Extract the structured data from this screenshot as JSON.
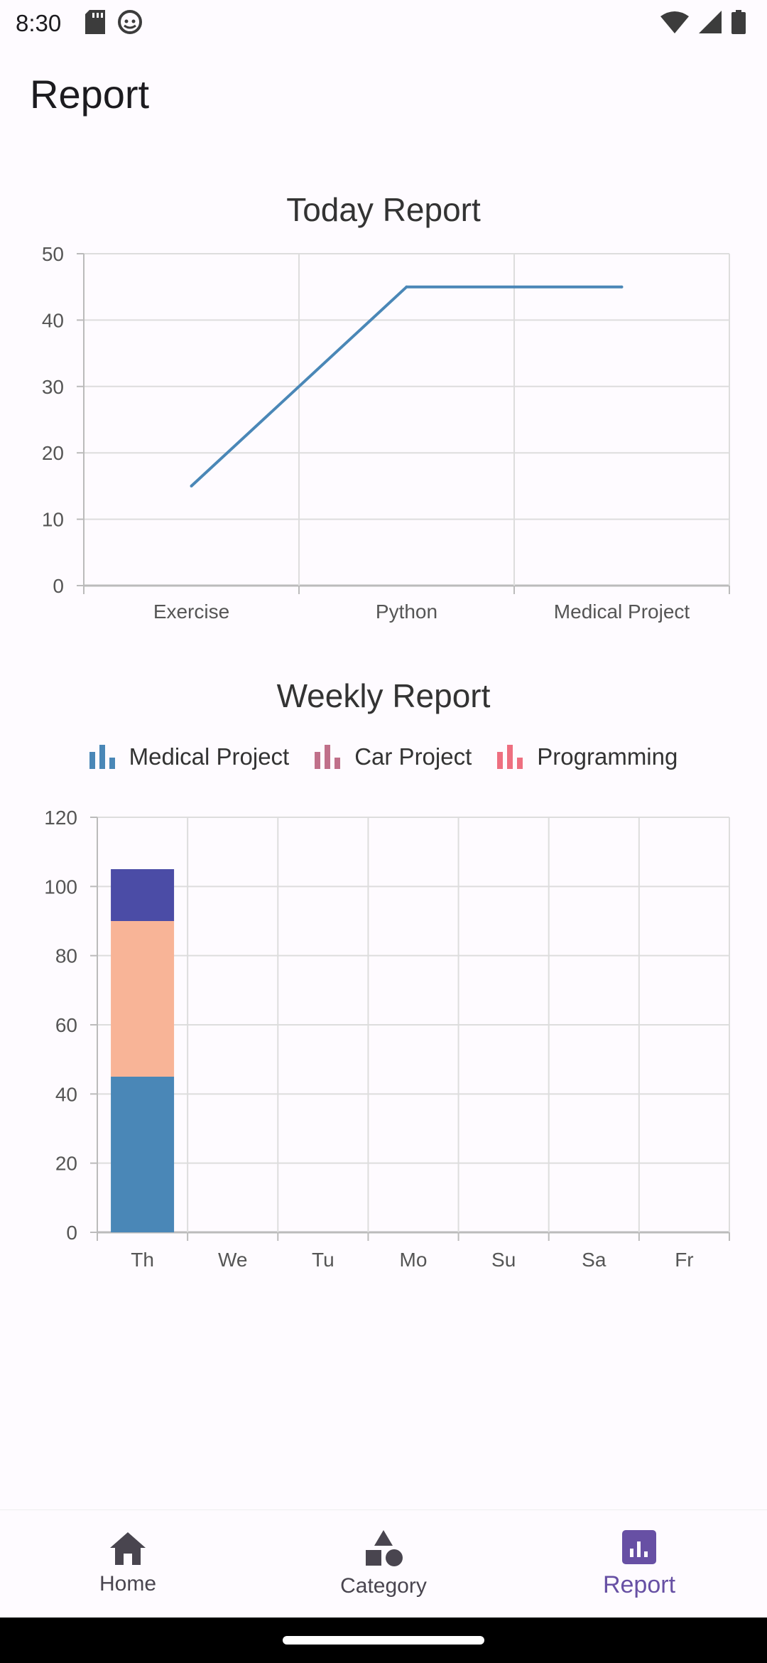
{
  "status": {
    "time": "8:30"
  },
  "app": {
    "title": "Report"
  },
  "colors": {
    "line": "#4a87b7",
    "medical": "#4a87b7",
    "car": "#f8b497",
    "programming": "#4b4ca6",
    "grid": "#dddddd",
    "axis": "#bbbbbb",
    "active": "#6750a4"
  },
  "chart_data": [
    {
      "type": "line",
      "title": "Today Report",
      "categories": [
        "Exercise",
        "Python",
        "Medical Project"
      ],
      "values": [
        15,
        45,
        45
      ],
      "ylim": [
        0,
        50
      ],
      "yticks": [
        0,
        10,
        20,
        30,
        40,
        50
      ],
      "grid": true,
      "xlabel": "",
      "ylabel": ""
    },
    {
      "type": "bar",
      "stacked": true,
      "title": "Weekly Report",
      "categories": [
        "Th",
        "We",
        "Tu",
        "Mo",
        "Su",
        "Sa",
        "Fr"
      ],
      "series": [
        {
          "name": "Medical Project",
          "values": [
            45,
            0,
            0,
            0,
            0,
            0,
            0
          ]
        },
        {
          "name": "Car Project",
          "values": [
            45,
            0,
            0,
            0,
            0,
            0,
            0
          ]
        },
        {
          "name": "Programming",
          "values": [
            15,
            0,
            0,
            0,
            0,
            0,
            0
          ]
        }
      ],
      "legend_icon_colors": [
        "#4a87b7",
        "#c0708a",
        "#ee6f80"
      ],
      "ylim": [
        0,
        120
      ],
      "yticks": [
        0,
        20,
        40,
        60,
        80,
        100,
        120
      ],
      "legend": "top",
      "grid": true,
      "xlabel": "",
      "ylabel": ""
    }
  ],
  "nav": {
    "items": [
      {
        "label": "Home",
        "icon": "home-icon"
      },
      {
        "label": "Category",
        "icon": "category-icon"
      },
      {
        "label": "Report",
        "icon": "report-icon",
        "active": true
      }
    ]
  }
}
